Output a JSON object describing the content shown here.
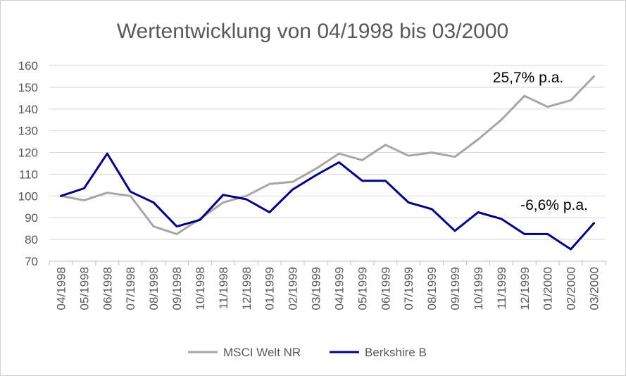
{
  "chart_data": {
    "type": "line",
    "title": "Wertentwicklung von 04/1998 bis 03/2000",
    "xlabel": "",
    "ylabel": "",
    "ylim": [
      70,
      160
    ],
    "yticks": [
      "70",
      "80",
      "90",
      "100",
      "110",
      "120",
      "130",
      "140",
      "150",
      "160"
    ],
    "grid": true,
    "legend_position": "bottom",
    "categories": [
      "04/1998",
      "05/1998",
      "06/1998",
      "07/1998",
      "08/1998",
      "09/1998",
      "10/1998",
      "11/1998",
      "12/1998",
      "01/1999",
      "02/1999",
      "03/1999",
      "04/1999",
      "05/1999",
      "06/1999",
      "07/1999",
      "08/1999",
      "09/1999",
      "10/1999",
      "11/1999",
      "12/1999",
      "01/2000",
      "02/2000",
      "03/2000"
    ],
    "series": [
      {
        "name": "MSCI Welt NR",
        "color": "#a6a6a6",
        "values": [
          100,
          98,
          101.5,
          100,
          86,
          82.5,
          89.5,
          97,
          100,
          105.5,
          106.5,
          112.5,
          119.5,
          116.5,
          123.5,
          118.5,
          120,
          118,
          126,
          135,
          146,
          141,
          144,
          155
        ]
      },
      {
        "name": "Berkshire B",
        "color": "#000080",
        "values": [
          100,
          103.5,
          119.5,
          102,
          97,
          86,
          89,
          100.5,
          98.5,
          92.5,
          103,
          109.5,
          115.5,
          107,
          107,
          97,
          94,
          84,
          92.5,
          89.5,
          82.5,
          82.5,
          75.5,
          87.5
        ]
      }
    ],
    "annotations": [
      {
        "text": "25,7% p.a.",
        "series": 0
      },
      {
        "text": "-6,6% p.a.",
        "series": 1
      }
    ]
  }
}
